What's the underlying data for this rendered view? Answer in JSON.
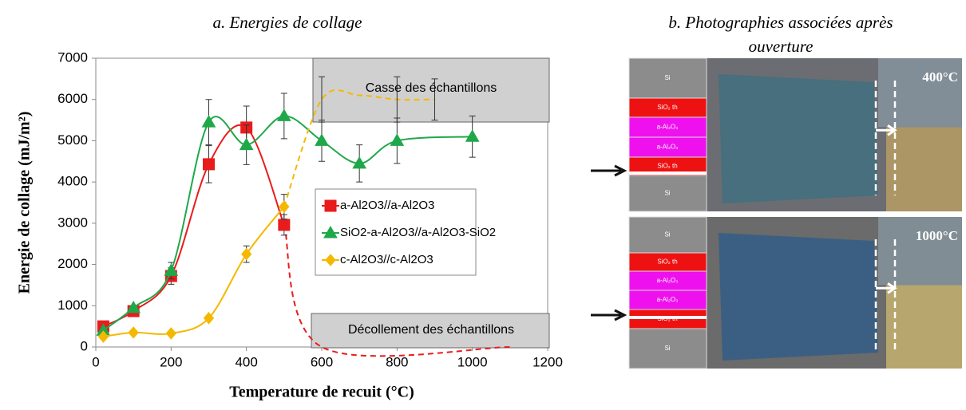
{
  "chart_data": {
    "type": "line",
    "title": "a. Energies de collage",
    "xlabel": "Temperature de recuit (°C)",
    "ylabel": "Energie de collage (mJ/m²)",
    "xlim": [
      0,
      1200
    ],
    "xticks": [
      0,
      200,
      400,
      600,
      800,
      1000,
      1200
    ],
    "ylim": [
      0,
      7000
    ],
    "yticks": [
      0,
      1000,
      2000,
      3000,
      4000,
      5000,
      6000,
      7000
    ],
    "series": [
      {
        "name": "a-Al2O3//a-Al2O3",
        "color": "#e81c1c",
        "marker": "square",
        "x": [
          20,
          100,
          200,
          300,
          400,
          500
        ],
        "values": [
          500,
          870,
          1720,
          4430,
          5320,
          2960
        ],
        "errors": [
          null,
          null,
          200,
          450,
          520,
          250
        ],
        "extension": {
          "x": [
            500,
            600,
            1100
          ],
          "values": [
            2960,
            0,
            0
          ]
        }
      },
      {
        "name": "SiO2-a-Al2O3//a-Al2O3-SiO2",
        "color": "#1fa84a",
        "marker": "triangle",
        "x": [
          20,
          100,
          200,
          300,
          400,
          500,
          600,
          700,
          800,
          1000
        ],
        "values": [
          400,
          950,
          1850,
          5450,
          4900,
          5600,
          5000,
          4450,
          5000,
          5100
        ],
        "errors": [
          null,
          null,
          200,
          550,
          480,
          550,
          500,
          450,
          550,
          500
        ]
      },
      {
        "name": "c-Al2O3//c-Al2O3",
        "color": "#f5b800",
        "marker": "diamond",
        "x": [
          20,
          100,
          200,
          300,
          400,
          500
        ],
        "values": [
          250,
          350,
          330,
          700,
          2250,
          3400
        ],
        "errors": [
          null,
          null,
          null,
          null,
          200,
          300
        ],
        "extension": {
          "x": [
            500,
            600,
            700,
            800,
            900
          ],
          "values": [
            3400,
            6000,
            6100,
            6000,
            6000
          ],
          "errors": [
            null,
            550,
            null,
            550,
            500
          ]
        }
      }
    ],
    "annotations": [
      "Casse des échantillons",
      "Décollement des échantillons"
    ]
  },
  "photos": {
    "title": "b. Photographies associées après ouverture",
    "panels": [
      {
        "label": "400°C",
        "layers": [
          "Si",
          "SiO₂ th",
          "a-Al₂O₃",
          "a-Al₂O₃",
          "SiO₂ th",
          "Si"
        ]
      },
      {
        "label": "1000°C",
        "layers": [
          "Si",
          "SiO₂ th",
          "a-Al₂O₃",
          "a-Al₂O₃",
          "SiO₂ th",
          "Si"
        ]
      }
    ]
  }
}
